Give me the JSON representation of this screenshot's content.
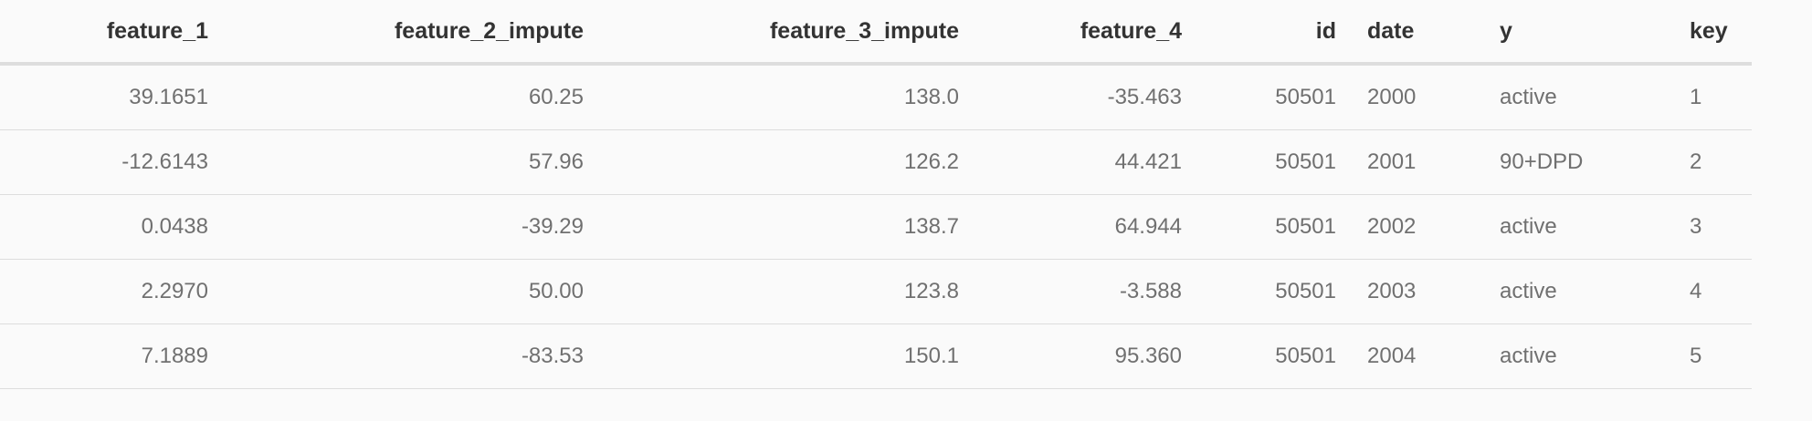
{
  "table": {
    "headers": [
      "feature_1",
      "feature_2_impute",
      "feature_3_impute",
      "feature_4",
      "id",
      "date",
      "y",
      "key"
    ],
    "rows": [
      [
        "39.1651",
        "60.25",
        "138.0",
        "-35.463",
        "50501",
        "2000",
        "active",
        "1"
      ],
      [
        "-12.6143",
        "57.96",
        "126.2",
        "44.421",
        "50501",
        "2001",
        "90+DPD",
        "2"
      ],
      [
        "0.0438",
        "-39.29",
        "138.7",
        "64.944",
        "50501",
        "2002",
        "active",
        "3"
      ],
      [
        "2.2970",
        "50.00",
        "123.8",
        "-3.588",
        "50501",
        "2003",
        "active",
        "4"
      ],
      [
        "7.1889",
        "-83.53",
        "150.1",
        "95.360",
        "50501",
        "2004",
        "active",
        "5"
      ]
    ]
  },
  "colors": {
    "background": "#fafafa",
    "header_text": "#333333",
    "cell_text": "#707070",
    "rule": "#dddddd"
  }
}
